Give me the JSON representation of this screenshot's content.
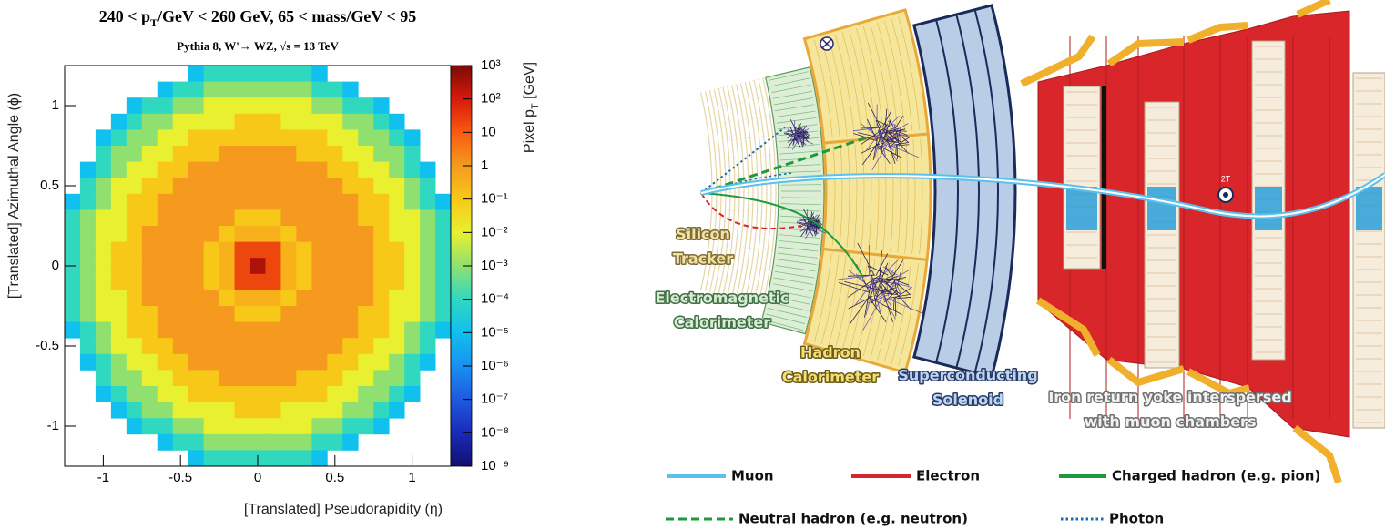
{
  "chart_data": {
    "type": "heatmap",
    "title": [
      "240 < p",
      "T",
      "/GeV < 260 GeV, 65 < mass/GeV < 95"
    ],
    "subtitle": "Pythia 8, W'→ WZ, √s = 13 TeV",
    "xlabel": "[Translated] Pseudorapidity (η)",
    "ylabel": "[Translated] Azimuthal Angle (ϕ)",
    "zlabel": [
      "Pixel p",
      "T",
      " [GeV]"
    ],
    "xlim": [
      -1.25,
      1.25
    ],
    "ylim": [
      -1.25,
      1.25
    ],
    "xticks": [
      -1,
      -0.5,
      0,
      0.5,
      1
    ],
    "yticks": [
      -1,
      -0.5,
      0,
      0.5,
      1
    ],
    "zlim": [
      1e-09,
      1000
    ],
    "zscale": "log",
    "zticks": [
      {
        "value": 1000,
        "label": "10³"
      },
      {
        "value": 100,
        "label": "10²"
      },
      10,
      1,
      {
        "value": 0.1,
        "label": "10⁻¹"
      },
      {
        "value": 0.01,
        "label": "10⁻²"
      },
      {
        "value": 0.001,
        "label": "10⁻³"
      },
      {
        "value": 0.0001,
        "label": "10⁻⁴"
      },
      {
        "value": 1e-05,
        "label": "10⁻⁵"
      },
      {
        "value": 1e-06,
        "label": "10⁻⁶"
      },
      {
        "value": 1e-07,
        "label": "10⁻⁷"
      },
      {
        "value": 1e-08,
        "label": "10⁻⁸"
      },
      {
        "value": 1e-09,
        "label": "10⁻⁹"
      }
    ],
    "colormap": [
      "#10106e",
      "#1a2ab8",
      "#1e5ae0",
      "#1a90f0",
      "#10c0ee",
      "#30d8c0",
      "#90e070",
      "#e8f030",
      "#f8c818",
      "#f59a1e",
      "#f85a10",
      "#d81a0a",
      "#7a0a06"
    ],
    "z": [
      [
        null,
        null,
        null,
        null,
        null,
        null,
        null,
        null,
        1e-05,
        0.0001,
        0.0001,
        0.0001,
        0.0001,
        0.0001,
        0.0001,
        0.0001,
        1e-05,
        null,
        null,
        null,
        null,
        null,
        null,
        null,
        null
      ],
      [
        null,
        null,
        null,
        null,
        null,
        null,
        1e-05,
        0.0001,
        0.0001,
        0.001,
        0.001,
        0.001,
        0.001,
        0.001,
        0.001,
        0.001,
        0.0001,
        0.0001,
        1e-05,
        null,
        null,
        null,
        null,
        null,
        null
      ],
      [
        null,
        null,
        null,
        null,
        1e-05,
        0.0001,
        0.0001,
        0.001,
        0.001,
        0.01,
        0.01,
        0.01,
        0.01,
        0.01,
        0.01,
        0.01,
        0.001,
        0.001,
        0.0001,
        0.0001,
        1e-05,
        null,
        null,
        null,
        null
      ],
      [
        null,
        null,
        null,
        1e-05,
        0.0001,
        0.001,
        0.001,
        0.01,
        0.01,
        0.01,
        0.01,
        0.1,
        0.1,
        0.1,
        0.01,
        0.01,
        0.01,
        0.01,
        0.001,
        0.001,
        0.0001,
        1e-05,
        null,
        null,
        null
      ],
      [
        null,
        null,
        1e-05,
        0.0001,
        0.001,
        0.001,
        0.01,
        0.01,
        0.1,
        0.1,
        0.1,
        0.1,
        0.1,
        0.1,
        0.1,
        0.1,
        0.1,
        0.01,
        0.01,
        0.001,
        0.001,
        0.0001,
        1e-05,
        null,
        null
      ],
      [
        null,
        null,
        0.0001,
        0.001,
        0.001,
        0.01,
        0.01,
        0.1,
        0.1,
        0.1,
        1,
        1,
        1,
        1,
        1,
        0.1,
        0.1,
        0.1,
        0.01,
        0.01,
        0.001,
        0.001,
        0.0001,
        null,
        null
      ],
      [
        null,
        1e-05,
        0.0001,
        0.001,
        0.01,
        0.01,
        0.1,
        0.1,
        1,
        1,
        1,
        1,
        1,
        1,
        1,
        1,
        1,
        0.1,
        0.1,
        0.01,
        0.01,
        0.001,
        0.0001,
        1e-05,
        null
      ],
      [
        null,
        0.0001,
        0.001,
        0.01,
        0.01,
        0.1,
        0.1,
        1,
        1,
        1,
        1,
        1,
        1,
        1,
        1,
        1,
        1,
        1,
        0.1,
        0.1,
        0.01,
        0.01,
        0.001,
        0.0001,
        null
      ],
      [
        1e-05,
        0.0001,
        0.001,
        0.01,
        0.1,
        0.1,
        1,
        1,
        1,
        1,
        1,
        1,
        1,
        1,
        1,
        1,
        1,
        1,
        1,
        0.1,
        0.1,
        0.01,
        0.001,
        0.0001,
        1e-05
      ],
      [
        0.0001,
        0.001,
        0.01,
        0.01,
        0.1,
        0.1,
        1,
        1,
        1,
        1,
        1,
        0.1,
        0.1,
        0.1,
        1,
        1,
        1,
        1,
        1,
        0.1,
        0.1,
        0.01,
        0.01,
        0.001,
        0.0001
      ],
      [
        0.0001,
        0.001,
        0.01,
        0.01,
        0.1,
        1,
        1,
        1,
        1,
        1,
        0.1,
        0.3,
        0.3,
        0.3,
        0.1,
        1,
        1,
        1,
        1,
        1,
        0.1,
        0.01,
        0.01,
        0.001,
        0.0001
      ],
      [
        0.0001,
        0.001,
        0.01,
        0.1,
        0.1,
        1,
        1,
        1,
        1,
        0.1,
        0.3,
        20,
        20,
        20,
        0.3,
        0.1,
        1,
        1,
        1,
        1,
        0.1,
        0.1,
        0.01,
        0.001,
        0.0001
      ],
      [
        0.0001,
        0.001,
        0.01,
        0.1,
        0.1,
        1,
        1,
        1,
        1,
        0.1,
        0.3,
        20,
        300,
        20,
        0.3,
        0.1,
        1,
        1,
        1,
        1,
        0.1,
        0.1,
        0.01,
        0.001,
        0.0001
      ],
      [
        0.0001,
        0.001,
        0.01,
        0.1,
        0.1,
        1,
        1,
        1,
        1,
        0.1,
        0.3,
        20,
        20,
        20,
        0.3,
        0.1,
        1,
        1,
        1,
        1,
        0.1,
        0.1,
        0.01,
        0.001,
        0.0001
      ],
      [
        0.0001,
        0.001,
        0.01,
        0.01,
        0.1,
        1,
        1,
        1,
        1,
        1,
        0.1,
        0.3,
        0.3,
        0.3,
        0.1,
        1,
        1,
        1,
        1,
        1,
        0.1,
        0.01,
        0.01,
        0.001,
        0.0001
      ],
      [
        0.0001,
        0.001,
        0.01,
        0.01,
        0.1,
        0.1,
        1,
        1,
        1,
        1,
        1,
        0.1,
        0.1,
        0.1,
        1,
        1,
        1,
        1,
        1,
        0.1,
        0.1,
        0.01,
        0.01,
        0.001,
        0.0001
      ],
      [
        1e-05,
        0.0001,
        0.001,
        0.01,
        0.1,
        0.1,
        1,
        1,
        1,
        1,
        1,
        1,
        1,
        1,
        1,
        1,
        1,
        1,
        1,
        0.1,
        0.1,
        0.01,
        0.001,
        0.0001,
        1e-05
      ],
      [
        null,
        0.0001,
        0.001,
        0.01,
        0.01,
        0.1,
        0.1,
        1,
        1,
        1,
        1,
        1,
        1,
        1,
        1,
        1,
        1,
        1,
        0.1,
        0.1,
        0.01,
        0.01,
        0.001,
        0.0001,
        null
      ],
      [
        null,
        1e-05,
        0.0001,
        0.001,
        0.01,
        0.01,
        0.1,
        0.1,
        1,
        1,
        1,
        1,
        1,
        1,
        1,
        1,
        1,
        0.1,
        0.1,
        0.01,
        0.01,
        0.001,
        0.0001,
        1e-05,
        null
      ],
      [
        null,
        null,
        0.0001,
        0.001,
        0.001,
        0.01,
        0.01,
        0.1,
        0.1,
        0.1,
        1,
        1,
        1,
        1,
        1,
        0.1,
        0.1,
        0.1,
        0.01,
        0.01,
        0.001,
        0.001,
        0.0001,
        null,
        null
      ],
      [
        null,
        null,
        1e-05,
        0.0001,
        0.001,
        0.001,
        0.01,
        0.01,
        0.1,
        0.1,
        0.1,
        0.1,
        0.1,
        0.1,
        0.1,
        0.1,
        0.1,
        0.01,
        0.01,
        0.001,
        0.001,
        0.0001,
        1e-05,
        null,
        null
      ],
      [
        null,
        null,
        null,
        1e-05,
        0.0001,
        0.001,
        0.001,
        0.01,
        0.01,
        0.01,
        0.01,
        0.1,
        0.1,
        0.1,
        0.01,
        0.01,
        0.01,
        0.01,
        0.001,
        0.001,
        0.0001,
        1e-05,
        null,
        null,
        null
      ],
      [
        null,
        null,
        null,
        null,
        1e-05,
        0.0001,
        0.0001,
        0.001,
        0.001,
        0.01,
        0.01,
        0.01,
        0.01,
        0.01,
        0.01,
        0.01,
        0.001,
        0.001,
        0.0001,
        0.0001,
        1e-05,
        null,
        null,
        null,
        null
      ],
      [
        null,
        null,
        null,
        null,
        null,
        null,
        1e-05,
        0.0001,
        0.0001,
        0.001,
        0.001,
        0.001,
        0.001,
        0.001,
        0.001,
        0.001,
        0.0001,
        0.0001,
        1e-05,
        null,
        null,
        null,
        null,
        null,
        null
      ],
      [
        null,
        null,
        null,
        null,
        null,
        null,
        null,
        null,
        1e-05,
        0.0001,
        0.0001,
        0.0001,
        0.0001,
        0.0001,
        0.0001,
        0.0001,
        1e-05,
        null,
        null,
        null,
        null,
        null,
        null,
        null,
        null
      ]
    ]
  },
  "diagram": {
    "labels": [
      {
        "lines": [
          "Silicon",
          "Tracker"
        ]
      },
      {
        "lines": [
          "Electromagnetic",
          "Calorimeter"
        ]
      },
      {
        "lines": [
          "Hadron",
          "Calorimeter"
        ]
      },
      {
        "lines": [
          "Superconducting",
          "Solenoid"
        ]
      },
      {
        "lines": [
          "Iron return yoke interspersed",
          "with muon chambers"
        ]
      }
    ],
    "field_label": "2T",
    "legend": [
      {
        "label": "Muon",
        "color": "#5bc0eb",
        "style": "solid"
      },
      {
        "label": "Electron",
        "color": "#d7262b",
        "style": "solid"
      },
      {
        "label": "Charged hadron (e.g. pion)",
        "color": "#1e9a3c",
        "style": "solid"
      },
      {
        "label": "Neutral hadron (e.g. neutron)",
        "color": "#1e9a3c",
        "style": "dashed"
      },
      {
        "label": "Photon",
        "color": "#1a6bb0",
        "style": "dotted"
      }
    ]
  }
}
